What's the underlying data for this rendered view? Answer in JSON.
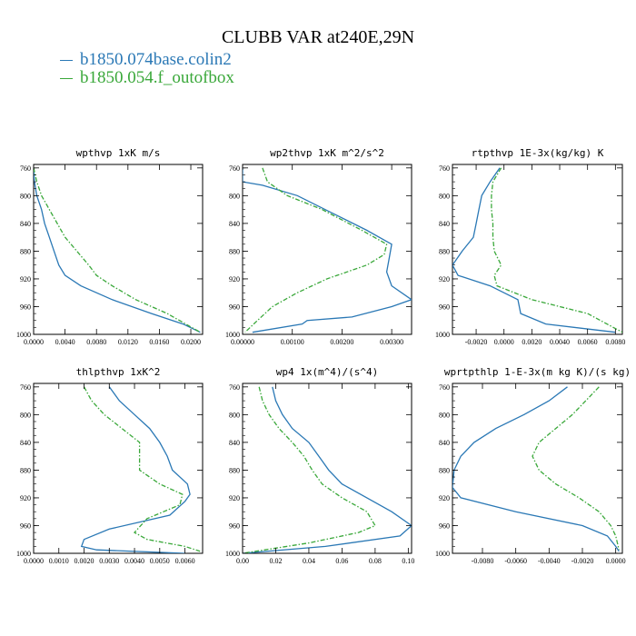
{
  "title": "CLUBB VAR at240E,29N",
  "legend": [
    {
      "label": "b1850.074base.colin2",
      "color": "#2a78b5",
      "dash": "solid"
    },
    {
      "label": "b1850.054.f_outofbox",
      "color": "#3aa83a",
      "dash": "dashdot"
    }
  ],
  "chart_data": [
    {
      "type": "line",
      "title": "wpthvp  1xK m/s",
      "xlim": [
        0,
        0.0215
      ],
      "ylim": [
        1000,
        755
      ],
      "xticks": [
        0,
        0.004,
        0.008,
        0.012,
        0.016,
        0.02
      ],
      "xtick_labels": [
        "0.0000",
        "0.0040",
        "0.0080",
        "0.0120",
        "0.0160",
        "0.0200"
      ],
      "yticks": [
        760,
        800,
        840,
        880,
        920,
        960,
        1000
      ],
      "series": [
        {
          "name": "b1850.074base.colin2",
          "x": [
            0.0,
            0.0001,
            0.0004,
            0.001,
            0.0014,
            0.002,
            0.0026,
            0.0032,
            0.004,
            0.006,
            0.01,
            0.015,
            0.019,
            0.0212
          ],
          "y": [
            760,
            780,
            800,
            820,
            840,
            860,
            880,
            900,
            915,
            930,
            950,
            970,
            985,
            997
          ]
        },
        {
          "name": "b1850.054.f_outofbox",
          "x": [
            0.0,
            0.0004,
            0.001,
            0.002,
            0.003,
            0.004,
            0.0055,
            0.007,
            0.008,
            0.01,
            0.013,
            0.017,
            0.0212
          ],
          "y": [
            760,
            780,
            800,
            820,
            840,
            860,
            880,
            900,
            915,
            930,
            950,
            970,
            997
          ]
        }
      ]
    },
    {
      "type": "line",
      "title": "wp2thvp  1xK m^2/s^2",
      "xlim": [
        0,
        0.0034
      ],
      "ylim": [
        1000,
        755
      ],
      "xticks": [
        0,
        0.001,
        0.002,
        0.003
      ],
      "xtick_labels": [
        "0.00000",
        "0.00100",
        "0.00200",
        "0.00300"
      ],
      "yticks": [
        760,
        800,
        840,
        880,
        920,
        960,
        1000
      ],
      "series": [
        {
          "name": "b1850.074base.colin2",
          "x": [
            0.0,
            0.0,
            0.0004,
            0.0011,
            0.0018,
            0.0025,
            0.003,
            0.00295,
            0.0029,
            0.003,
            0.0034,
            0.003,
            0.0022,
            0.0013,
            0.0012,
            0.0002
          ],
          "y": [
            760,
            780,
            785,
            800,
            825,
            850,
            870,
            890,
            910,
            930,
            950,
            960,
            975,
            980,
            985,
            997
          ]
        },
        {
          "name": "b1850.054.f_outofbox",
          "x": [
            0.0004,
            0.0005,
            0.0009,
            0.0016,
            0.0024,
            0.0029,
            0.00285,
            0.0025,
            0.0017,
            0.0011,
            0.0006,
            0.0003,
            5e-05
          ],
          "y": [
            760,
            780,
            800,
            820,
            850,
            870,
            885,
            900,
            920,
            940,
            960,
            980,
            997
          ]
        }
      ]
    },
    {
      "type": "line",
      "title": "rtpthvp  1E-3x(kg/kg) K",
      "xlim": [
        -0.0037,
        0.0085
      ],
      "ylim": [
        1000,
        755
      ],
      "xticks": [
        -0.002,
        0,
        0.002,
        0.004,
        0.006,
        0.008
      ],
      "xtick_labels": [
        "-0.0020",
        "0.0000",
        "0.0020",
        "0.0040",
        "0.0060",
        "0.0080"
      ],
      "yticks": [
        760,
        800,
        840,
        880,
        920,
        960,
        1000
      ],
      "series": [
        {
          "name": "b1850.074base.colin2",
          "x": [
            -0.0003,
            -0.001,
            -0.0016,
            -0.0018,
            -0.002,
            -0.0022,
            -0.003,
            -0.0037,
            -0.0033,
            -0.001,
            0.001,
            0.0012,
            0.003,
            0.008
          ],
          "y": [
            760,
            780,
            800,
            820,
            840,
            860,
            880,
            900,
            915,
            930,
            950,
            970,
            985,
            997
          ]
        },
        {
          "name": "b1850.054.f_outofbox",
          "x": [
            -0.0002,
            -0.0008,
            -0.0009,
            -0.0009,
            -0.0008,
            -0.0008,
            -0.0007,
            -0.0002,
            -0.0007,
            -0.0005,
            0.002,
            0.006,
            0.0085
          ],
          "y": [
            760,
            780,
            800,
            820,
            840,
            860,
            880,
            900,
            915,
            930,
            950,
            970,
            997
          ]
        }
      ]
    },
    {
      "type": "line",
      "title": "thlpthvp  1xK^2",
      "xlim": [
        0,
        0.0067
      ],
      "ylim": [
        1000,
        755
      ],
      "xticks": [
        0,
        0.001,
        0.002,
        0.003,
        0.004,
        0.005,
        0.006
      ],
      "xtick_labels": [
        "0.0000",
        "0.0010",
        "0.0020",
        "0.0030",
        "0.0040",
        "0.0050",
        "0.0060"
      ],
      "yticks": [
        760,
        800,
        840,
        880,
        920,
        960,
        1000
      ],
      "series": [
        {
          "name": "b1850.074base.colin2",
          "x": [
            0.003,
            0.0034,
            0.004,
            0.0046,
            0.005,
            0.0053,
            0.0055,
            0.0061,
            0.0062,
            0.006,
            0.0054,
            0.003,
            0.002,
            0.0019,
            0.0025,
            0.006
          ],
          "y": [
            760,
            780,
            800,
            820,
            840,
            860,
            880,
            900,
            915,
            925,
            945,
            965,
            980,
            990,
            995,
            1000
          ]
        },
        {
          "name": "b1850.054.f_outofbox",
          "x": [
            0.002,
            0.0023,
            0.0028,
            0.0035,
            0.0042,
            0.0042,
            0.0042,
            0.005,
            0.0059,
            0.0058,
            0.0045,
            0.004,
            0.0045,
            0.006,
            0.0066
          ],
          "y": [
            760,
            780,
            800,
            820,
            840,
            860,
            880,
            900,
            915,
            930,
            950,
            970,
            980,
            990,
            997
          ]
        }
      ]
    },
    {
      "type": "line",
      "title": "wp4  1x(m^4)/(s^4)",
      "xlim": [
        0,
        0.102
      ],
      "ylim": [
        1000,
        755
      ],
      "xticks": [
        0,
        0.02,
        0.04,
        0.06,
        0.08,
        0.1
      ],
      "xtick_labels": [
        "0.00",
        "0.02",
        "0.04",
        "0.06",
        "0.08",
        "0.10"
      ],
      "yticks": [
        760,
        800,
        840,
        880,
        920,
        960,
        1000
      ],
      "series": [
        {
          "name": "b1850.074base.colin2",
          "x": [
            0.018,
            0.02,
            0.024,
            0.03,
            0.04,
            0.046,
            0.052,
            0.06,
            0.075,
            0.09,
            0.102,
            0.095,
            0.05,
            0.0
          ],
          "y": [
            760,
            780,
            800,
            820,
            840,
            860,
            880,
            900,
            920,
            940,
            960,
            975,
            990,
            1000
          ]
        },
        {
          "name": "b1850.054.f_outofbox",
          "x": [
            0.01,
            0.012,
            0.016,
            0.022,
            0.03,
            0.037,
            0.042,
            0.048,
            0.06,
            0.075,
            0.08,
            0.07,
            0.04,
            0.0
          ],
          "y": [
            760,
            780,
            800,
            820,
            840,
            860,
            880,
            900,
            920,
            940,
            960,
            970,
            985,
            1000
          ]
        }
      ]
    },
    {
      "type": "line",
      "title": "wprtpthlp  1-E-3x(m kg K)/(s kg)",
      "xlim": [
        -0.0098,
        0.0004
      ],
      "ylim": [
        1000,
        755
      ],
      "xticks": [
        -0.008,
        -0.006,
        -0.004,
        -0.002,
        0
      ],
      "xtick_labels": [
        "-0.0080",
        "-0.0060",
        "-0.0040",
        "-0.0020",
        "0.0000"
      ],
      "yticks": [
        760,
        800,
        840,
        880,
        920,
        960,
        1000
      ],
      "series": [
        {
          "name": "b1850.074base.colin2",
          "x": [
            -0.0029,
            -0.004,
            -0.0055,
            -0.0072,
            -0.0085,
            -0.0093,
            -0.0097,
            -0.0098,
            -0.0093,
            -0.006,
            -0.002,
            -0.0005,
            0.0,
            0.0002
          ],
          "y": [
            760,
            780,
            800,
            820,
            840,
            860,
            880,
            905,
            920,
            940,
            960,
            975,
            990,
            997
          ]
        },
        {
          "name": "b1850.054.f_outofbox",
          "x": [
            -0.001,
            -0.0018,
            -0.0026,
            -0.0036,
            -0.0046,
            -0.005,
            -0.0046,
            -0.0036,
            -0.0022,
            -0.001,
            -0.0003,
            0.0,
            0.0002
          ],
          "y": [
            760,
            780,
            800,
            820,
            840,
            860,
            880,
            900,
            920,
            940,
            960,
            975,
            995
          ]
        }
      ]
    }
  ]
}
